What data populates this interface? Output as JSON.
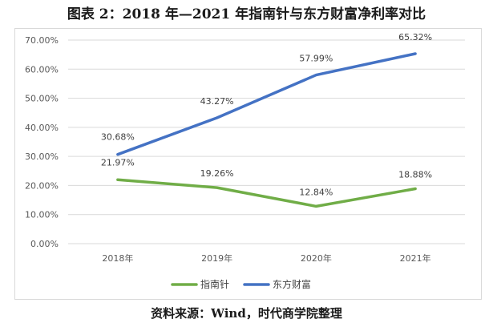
{
  "title": "图表 2：2018 年—2021 年指南针与东方财富净利率对比",
  "source": "资料来源：Wind，时代商学院整理",
  "chart_data": {
    "type": "line",
    "categories": [
      "2018年",
      "2019年",
      "2020年",
      "2021年"
    ],
    "y_ticks": [
      "0.00%",
      "10.00%",
      "20.00%",
      "30.00%",
      "40.00%",
      "50.00%",
      "60.00%",
      "70.00%"
    ],
    "ylim": [
      0,
      70
    ],
    "grid": true,
    "legend_position": "bottom",
    "series": [
      {
        "name": "指南针",
        "color": "#70ad47",
        "values": [
          21.97,
          19.26,
          12.84,
          18.88
        ],
        "labels": [
          "21.97%",
          "19.26%",
          "12.84%",
          "18.88%"
        ]
      },
      {
        "name": "东方财富",
        "color": "#4472c4",
        "values": [
          30.68,
          43.27,
          57.99,
          65.32
        ],
        "labels": [
          "30.68%",
          "43.27%",
          "57.99%",
          "65.32%"
        ]
      }
    ]
  }
}
